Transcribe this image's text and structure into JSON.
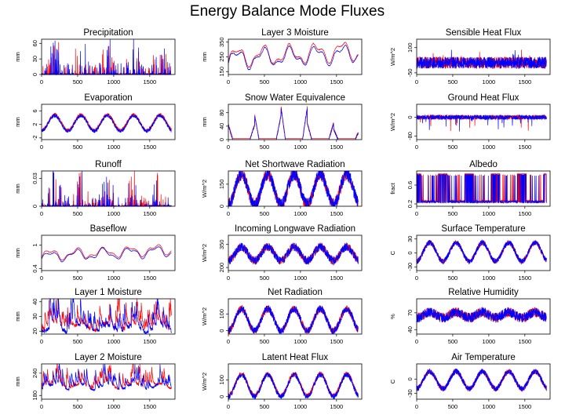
{
  "title": "Energy Balance Mode Fluxes",
  "colors": {
    "model_a": "#ff0000",
    "model_b": "#0000ff"
  },
  "chart_data": [
    {
      "type": "line",
      "panel": "precipitation",
      "title": "Precipitation",
      "ylabel": "mm",
      "xlabel": "",
      "xlim": [
        0,
        1850
      ],
      "xticks": [
        0,
        500,
        1000,
        1500
      ],
      "ylim": [
        0,
        68
      ],
      "yticks": [
        0,
        30,
        60
      ],
      "style": "spikes",
      "base": 0,
      "amp": 1,
      "seasonal": 0,
      "noise": 0,
      "spike": 64,
      "series": [
        {
          "color": "#ff0000"
        },
        {
          "color": "#0000ff"
        }
      ]
    },
    {
      "type": "line",
      "panel": "layer-3-moisture",
      "title": "Layer 3 Moisture",
      "ylabel": "mm",
      "xlabel": "",
      "xlim": [
        0,
        1850
      ],
      "xticks": [
        0,
        500,
        1000,
        1500
      ],
      "ylim": [
        130,
        370
      ],
      "yticks": [
        150,
        250,
        350
      ],
      "style": "smooth",
      "base": 240,
      "amp": 65,
      "seasonal": 0,
      "noise": 0,
      "trend": 40,
      "series": [
        {
          "color": "#ff0000",
          "offset": 8
        },
        {
          "color": "#0000ff",
          "offset": -8
        }
      ]
    },
    {
      "type": "line",
      "panel": "sensible-heat-flux",
      "title": "Sensible Heat Flux",
      "ylabel": "W/m^2",
      "xlabel": "",
      "xlim": [
        0,
        1850
      ],
      "xticks": [
        0,
        500,
        1000,
        1500
      ],
      "ylim": [
        -60,
        150
      ],
      "yticks": [
        -50,
        100
      ],
      "style": "noisy",
      "base": 10,
      "amp": 15,
      "seasonal": 0,
      "noise": 35,
      "spike": 60,
      "series": [
        {
          "color": "#ff0000"
        },
        {
          "color": "#0000ff"
        }
      ]
    },
    {
      "type": "line",
      "panel": "evaporation",
      "title": "Evaporation",
      "ylabel": "mm",
      "xlabel": "",
      "xlim": [
        0,
        1850
      ],
      "xticks": [
        0,
        500,
        1000,
        1500
      ],
      "ylim": [
        -2.5,
        8
      ],
      "yticks": [
        -2,
        2,
        6
      ],
      "style": "seasonal",
      "base": 2.3,
      "amp": 2.3,
      "seasonal": 1,
      "noise": 0.5,
      "series": [
        {
          "color": "#ff0000",
          "offset": 0.3
        },
        {
          "color": "#0000ff"
        }
      ]
    },
    {
      "type": "line",
      "panel": "snow-water-equivalence",
      "title": "Snow Water Equivalence",
      "ylabel": "mm",
      "xlabel": "",
      "xlim": [
        0,
        1850
      ],
      "xticks": [
        0,
        500,
        1000,
        1500
      ],
      "ylim": [
        0,
        105
      ],
      "yticks": [
        0,
        40,
        80
      ],
      "style": "snow",
      "base": 0,
      "amp": 1,
      "seasonal": 0,
      "noise": 0,
      "series": [
        {
          "color": "#ff0000",
          "offset": 3
        },
        {
          "color": "#0000ff"
        }
      ]
    },
    {
      "type": "line",
      "panel": "ground-heat-flux",
      "title": "Ground Heat Flux",
      "ylabel": "W/m^2",
      "xlabel": "",
      "xlim": [
        0,
        1850
      ],
      "xticks": [
        0,
        500,
        1000,
        1500
      ],
      "ylim": [
        -95,
        55
      ],
      "yticks": [
        -80,
        0
      ],
      "style": "noisy",
      "base": 0,
      "amp": 6,
      "seasonal": 0,
      "noise": 10,
      "spike": -60,
      "series": [
        {
          "color": "#ff0000"
        },
        {
          "color": "#0000ff"
        }
      ]
    },
    {
      "type": "line",
      "panel": "runoff",
      "title": "Runoff",
      "ylabel": "mm",
      "xlabel": "",
      "xlim": [
        0,
        1850
      ],
      "xticks": [
        0,
        500,
        1000,
        1500
      ],
      "ylim": [
        0,
        0.038
      ],
      "yticks": [
        0.0,
        0.03
      ],
      "style": "spikes",
      "base": 0,
      "amp": 1,
      "seasonal": 0,
      "noise": 0,
      "spike": 0.034,
      "series": [
        {
          "color": "#ff0000"
        },
        {
          "color": "#0000ff"
        }
      ]
    },
    {
      "type": "line",
      "panel": "net-shortwave-radiation",
      "title": "Net Shortwave Radiation",
      "ylabel": "W/m^2",
      "xlabel": "",
      "xlim": [
        0,
        1850
      ],
      "xticks": [
        0,
        500,
        1000,
        1500
      ],
      "ylim": [
        0,
        240
      ],
      "yticks": [
        0,
        150
      ],
      "style": "seasonal",
      "base": 115,
      "amp": 105,
      "seasonal": 1,
      "noise": 45,
      "series": [
        {
          "color": "#ff0000"
        },
        {
          "color": "#0000ff"
        }
      ]
    },
    {
      "type": "line",
      "panel": "albedo",
      "title": "Albedo",
      "ylabel": "fract",
      "xlabel": "",
      "xlim": [
        0,
        1850
      ],
      "xticks": [
        0,
        500,
        1000,
        1500
      ],
      "ylim": [
        0.15,
        0.9
      ],
      "yticks": [
        0.2,
        0.6
      ],
      "style": "albedo",
      "base": 0.2,
      "amp": 0.65,
      "seasonal": 0,
      "noise": 0,
      "series": [
        {
          "color": "#ff0000",
          "offset": 0.02
        },
        {
          "color": "#0000ff"
        }
      ]
    },
    {
      "type": "line",
      "panel": "baseflow",
      "title": "Baseflow",
      "ylabel": "mm",
      "xlabel": "",
      "xlim": [
        0,
        1850
      ],
      "xticks": [
        0,
        500,
        1000,
        1500
      ],
      "ylim": [
        0.35,
        1.25
      ],
      "yticks": [
        0.4,
        1.0
      ],
      "style": "smooth",
      "base": 0.72,
      "amp": 0.14,
      "seasonal": 0,
      "noise": 0,
      "trend": 0.15,
      "series": [
        {
          "color": "#ff0000",
          "offset": 0.02
        },
        {
          "color": "#0000ff",
          "offset": -0.02
        }
      ]
    },
    {
      "type": "line",
      "panel": "incoming-longwave-radiation",
      "title": "Incoming Longwave Radiation",
      "ylabel": "W/m^2",
      "xlabel": "",
      "xlim": [
        0,
        1850
      ],
      "xticks": [
        0,
        500,
        1000,
        1500
      ],
      "ylim": [
        180,
        410
      ],
      "yticks": [
        200,
        350
      ],
      "style": "seasonal",
      "base": 290,
      "amp": 45,
      "seasonal": 1,
      "noise": 28,
      "series": [
        {
          "color": "#ff0000"
        },
        {
          "color": "#0000ff"
        }
      ]
    },
    {
      "type": "line",
      "panel": "surface-temperature",
      "title": "Surface Temperature",
      "ylabel": "C",
      "xlabel": "",
      "xlim": [
        0,
        1850
      ],
      "xticks": [
        0,
        500,
        1000,
        1500
      ],
      "ylim": [
        -38,
        38
      ],
      "yticks": [
        -30,
        0,
        30
      ],
      "style": "seasonal",
      "base": 2,
      "amp": 20,
      "seasonal": 1,
      "noise": 6,
      "series": [
        {
          "color": "#ff0000"
        },
        {
          "color": "#0000ff"
        }
      ]
    },
    {
      "type": "line",
      "panel": "layer-1-moisture",
      "title": "Layer 1 Moisture",
      "ylabel": "mm",
      "xlabel": "",
      "xlim": [
        0,
        1850
      ],
      "xticks": [
        0,
        500,
        1000,
        1500
      ],
      "ylim": [
        18,
        42
      ],
      "yticks": [
        20,
        30,
        40
      ],
      "style": "moist",
      "base": 24,
      "amp": 6,
      "seasonal": 0,
      "noise": 2.5,
      "series": [
        {
          "color": "#ff0000",
          "offset": 1.5
        },
        {
          "color": "#0000ff"
        }
      ]
    },
    {
      "type": "line",
      "panel": "net-radiation",
      "title": "Net Radiation",
      "ylabel": "W/m^2",
      "xlabel": "",
      "xlim": [
        0,
        1850
      ],
      "xticks": [
        0,
        500,
        1000,
        1500
      ],
      "ylim": [
        -20,
        190
      ],
      "yticks": [
        0,
        100
      ],
      "style": "seasonal",
      "base": 65,
      "amp": 65,
      "seasonal": 1,
      "noise": 22,
      "series": [
        {
          "color": "#ff0000"
        },
        {
          "color": "#0000ff"
        }
      ]
    },
    {
      "type": "line",
      "panel": "relative-humidity",
      "title": "Relative Humidity",
      "ylabel": "%",
      "xlabel": "",
      "xlim": [
        0,
        1850
      ],
      "xticks": [
        0,
        500,
        1000,
        1500
      ],
      "ylim": [
        32,
        95
      ],
      "yticks": [
        40,
        70
      ],
      "style": "noisy",
      "base": 66,
      "amp": 5,
      "seasonal": 1,
      "noise": 9,
      "series": [
        {
          "color": "#ff0000"
        },
        {
          "color": "#0000ff"
        }
      ]
    },
    {
      "type": "line",
      "panel": "layer-2-moisture",
      "title": "Layer 2 Moisture",
      "ylabel": "mm",
      "xlabel": "",
      "xlim": [
        0,
        1850
      ],
      "xticks": [
        0,
        500,
        1000,
        1500
      ],
      "ylim": [
        170,
        265
      ],
      "yticks": [
        180,
        240
      ],
      "style": "moist",
      "base": 210,
      "amp": 18,
      "seasonal": 0,
      "noise": 6,
      "series": [
        {
          "color": "#ff0000",
          "offset": 2
        },
        {
          "color": "#0000ff"
        }
      ]
    },
    {
      "type": "line",
      "panel": "latent-heat-flux",
      "title": "Latent Heat Flux",
      "ylabel": "W/m^2",
      "xlabel": "",
      "xlim": [
        0,
        1850
      ],
      "xticks": [
        0,
        500,
        1000,
        1500
      ],
      "ylim": [
        -15,
        195
      ],
      "yticks": [
        0,
        100
      ],
      "style": "seasonal",
      "base": 65,
      "amp": 65,
      "seasonal": 1,
      "noise": 15,
      "series": [
        {
          "color": "#ff0000",
          "offset": 6
        },
        {
          "color": "#0000ff"
        }
      ]
    },
    {
      "type": "line",
      "panel": "air-temperature",
      "title": "Air Temperature",
      "ylabel": "C",
      "xlabel": "",
      "xlim": [
        0,
        1850
      ],
      "xticks": [
        0,
        500,
        1000,
        1500
      ],
      "ylim": [
        -42,
        32
      ],
      "yticks": [
        -30,
        0
      ],
      "style": "seasonal",
      "base": -2,
      "amp": 18,
      "seasonal": 1,
      "noise": 6,
      "series": [
        {
          "color": "#ff0000"
        },
        {
          "color": "#0000ff"
        }
      ]
    }
  ]
}
